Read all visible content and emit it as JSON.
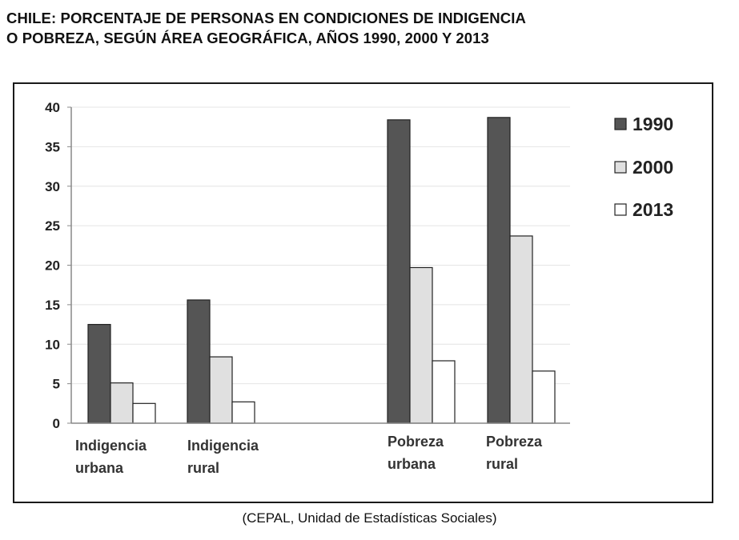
{
  "title": {
    "line1": "CHILE: PORCENTAJE DE PERSONAS EN CONDICIONES DE INDIGENCIA",
    "line2": "O POBREZA, SEGÚN ÁREA GEOGRÁFICA, AÑOS 1990, 2000 Y 2013"
  },
  "source": "(CEPAL, Unidad de Estadísticas Sociales)",
  "chart_data": {
    "type": "bar",
    "title": "CHILE: PORCENTAJE DE PERSONAS EN CONDICIONES DE INDIGENCIA O POBREZA, SEGÚN ÁREA GEOGRÁFICA, AÑOS 1990, 2000 Y 2013",
    "categories": [
      [
        "Indigencia",
        "urbana"
      ],
      [
        "Indigencia",
        "rural"
      ],
      [
        "Pobreza",
        "urbana"
      ],
      [
        "Pobreza",
        "rural"
      ]
    ],
    "series": [
      {
        "name": "1990",
        "color": "#555555",
        "values": [
          12.5,
          15.6,
          38.4,
          38.7
        ]
      },
      {
        "name": "2000",
        "color": "#e0e0e0",
        "values": [
          5.1,
          8.4,
          19.7,
          23.7
        ]
      },
      {
        "name": "2013",
        "color": "#ffffff",
        "values": [
          2.5,
          2.7,
          7.9,
          6.6
        ]
      }
    ],
    "ylim": [
      0,
      40
    ],
    "yticks": [
      0,
      5,
      10,
      15,
      20,
      25,
      30,
      35,
      40
    ],
    "xlabel": "",
    "ylabel": "",
    "grid": true,
    "legend": "right"
  }
}
